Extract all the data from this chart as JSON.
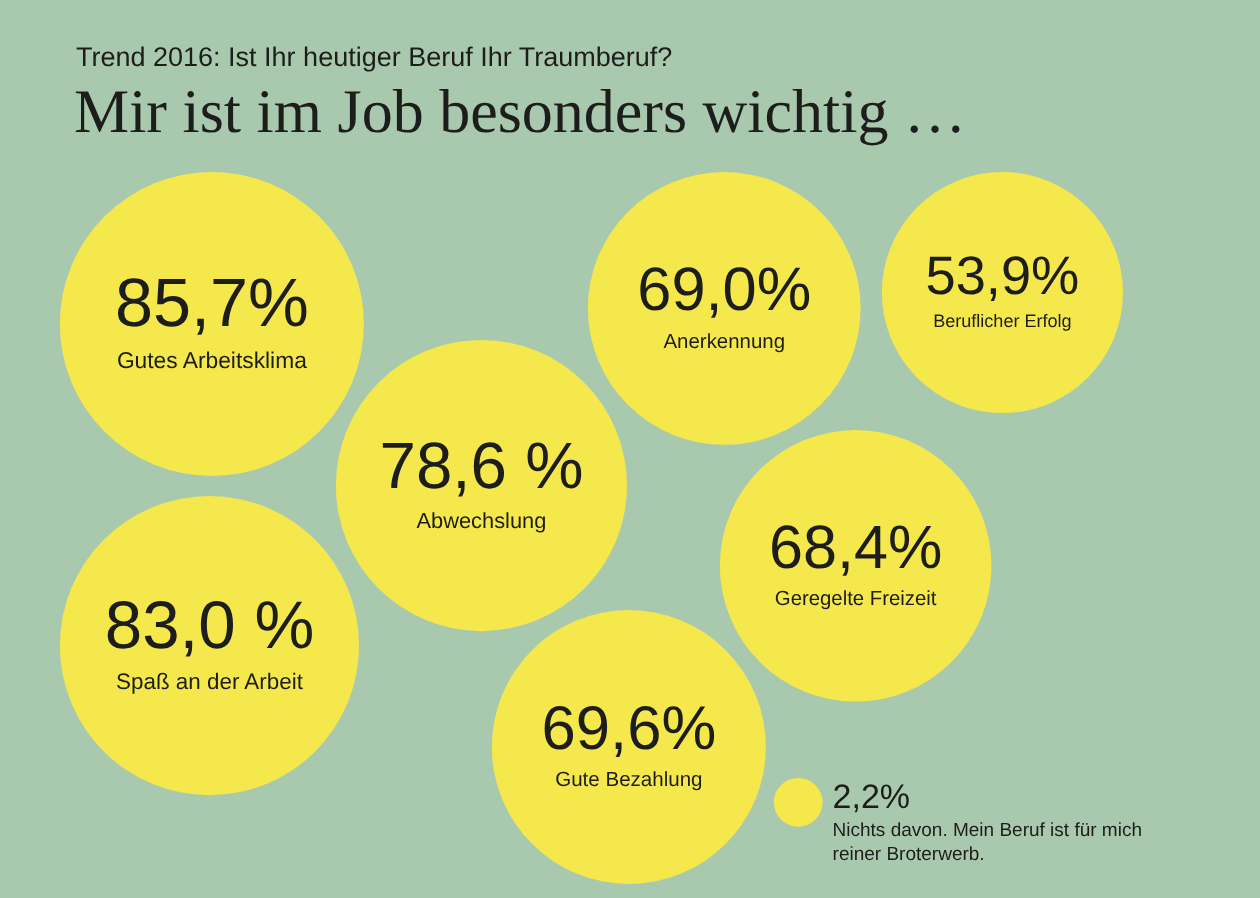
{
  "chart_data": {
    "type": "other",
    "title": "Mir ist im Job besonders wichtig …",
    "subtitle": "Trend 2016: Ist Ihr heutiger Beruf Ihr Traumberuf?",
    "categories": [
      "Gutes Arbeitsklima",
      "Spaß an der Arbeit",
      "Abwechslung",
      "Gute Bezahlung",
      "Anerkennung",
      "Geregelte Freizeit",
      "Beruflicher Erfolg",
      "Nichts davon. Mein Beruf ist für mich reiner Broterwerb."
    ],
    "values": [
      85.7,
      83.0,
      78.6,
      69.6,
      69.0,
      68.4,
      53.9,
      2.2
    ],
    "value_labels": [
      "85,7%",
      "83,0 %",
      "78,6 %",
      "69,6%",
      "69,0%",
      "68,4%",
      "53,9%",
      "2,2%"
    ],
    "color": "#f5e84c"
  }
}
